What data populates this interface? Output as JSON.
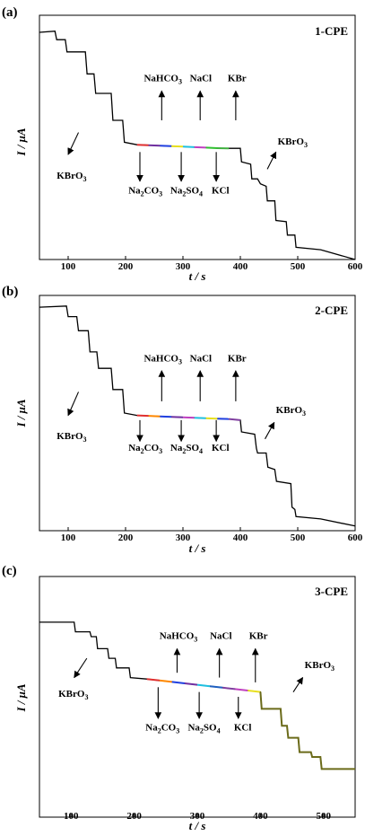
{
  "chart_data": [
    {
      "type": "line",
      "panel_label": "(a)",
      "title": "1-CPE",
      "xlabel": "t / s",
      "ylabel": "I / μA",
      "xlim": [
        50,
        600
      ],
      "xticks": [
        "100",
        "200",
        "300",
        "400",
        "500",
        "600"
      ],
      "x": [
        50,
        77,
        80,
        95,
        98,
        130,
        133,
        145,
        148,
        175,
        178,
        195,
        198,
        220,
        240,
        260,
        280,
        300,
        320,
        340,
        360,
        380,
        400,
        402,
        418,
        420,
        430,
        435,
        445,
        447,
        460,
        462,
        480,
        482,
        495,
        497,
        540,
        600
      ],
      "y": [
        0.93,
        0.935,
        0.9,
        0.9,
        0.85,
        0.85,
        0.76,
        0.76,
        0.68,
        0.68,
        0.57,
        0.57,
        0.48,
        0.47,
        0.468,
        0.466,
        0.464,
        0.462,
        0.46,
        0.458,
        0.456,
        0.455,
        0.455,
        0.4,
        0.39,
        0.33,
        0.33,
        0.31,
        0.3,
        0.24,
        0.24,
        0.16,
        0.155,
        0.1,
        0.1,
        0.05,
        0.04,
        0.0
      ],
      "colored_segments": [
        {
          "from": 220,
          "to": 240,
          "color": "#e03030"
        },
        {
          "from": 240,
          "to": 260,
          "color": "#7030a0"
        },
        {
          "from": 260,
          "to": 280,
          "color": "#2040e0"
        },
        {
          "from": 280,
          "to": 300,
          "color": "#e8e020"
        },
        {
          "from": 300,
          "to": 320,
          "color": "#20c0e0"
        },
        {
          "from": 320,
          "to": 340,
          "color": "#c040c0"
        },
        {
          "from": 340,
          "to": 360,
          "color": "#30c030"
        },
        {
          "from": 360,
          "to": 380,
          "color": "#40b040"
        }
      ],
      "annotations": [
        {
          "id": "kbro3-left",
          "segments": [
            {
              "text": "KBrO"
            },
            {
              "text": "3",
              "sub": true
            }
          ],
          "x": 80,
          "y": 0.33,
          "arrow": {
            "x0": 118,
            "y0": 0.52,
            "x1": 100,
            "y1": 0.43
          }
        },
        {
          "id": "na2co3",
          "segments": [
            {
              "text": "Na"
            },
            {
              "text": "2",
              "sub": true
            },
            {
              "text": "CO"
            },
            {
              "text": "3",
              "sub": true
            }
          ],
          "x": 205,
          "y": 0.27,
          "arrow": {
            "x0": 225,
            "y0": 0.44,
            "x1": 225,
            "y1": 0.32
          }
        },
        {
          "id": "na2so4",
          "segments": [
            {
              "text": "Na"
            },
            {
              "text": "2",
              "sub": true
            },
            {
              "text": "SO"
            },
            {
              "text": "4",
              "sub": true
            }
          ],
          "x": 278,
          "y": 0.27,
          "arrow": {
            "x0": 297,
            "y0": 0.44,
            "x1": 297,
            "y1": 0.32
          }
        },
        {
          "id": "kcl",
          "segments": [
            {
              "text": "KCl"
            }
          ],
          "x": 350,
          "y": 0.27,
          "arrow": {
            "x0": 358,
            "y0": 0.44,
            "x1": 358,
            "y1": 0.32
          }
        },
        {
          "id": "nahco3",
          "segments": [
            {
              "text": "NaHCO"
            },
            {
              "text": "3",
              "sub": true
            }
          ],
          "x": 232,
          "y": 0.73,
          "arrow": {
            "x0": 263,
            "y0": 0.57,
            "x1": 263,
            "y1": 0.69
          }
        },
        {
          "id": "nacl",
          "segments": [
            {
              "text": "NaCl"
            }
          ],
          "x": 312,
          "y": 0.73,
          "arrow": {
            "x0": 330,
            "y0": 0.57,
            "x1": 330,
            "y1": 0.69
          }
        },
        {
          "id": "kbr",
          "segments": [
            {
              "text": "KBr"
            }
          ],
          "x": 378,
          "y": 0.73,
          "arrow": {
            "x0": 392,
            "y0": 0.57,
            "x1": 392,
            "y1": 0.69
          }
        },
        {
          "id": "kbro3-right",
          "segments": [
            {
              "text": "KBrO"
            },
            {
              "text": "3",
              "sub": true
            }
          ],
          "x": 465,
          "y": 0.47,
          "arrow": {
            "x0": 447,
            "y0": 0.37,
            "x1": 462,
            "y1": 0.44
          }
        }
      ]
    },
    {
      "type": "line",
      "panel_label": "(b)",
      "title": "2-CPE",
      "xlabel": "t / s",
      "ylabel": "I / μA",
      "xlim": [
        50,
        600
      ],
      "xticks": [
        "100",
        "200",
        "300",
        "400",
        "500",
        "600"
      ],
      "x": [
        50,
        97,
        100,
        115,
        118,
        135,
        138,
        150,
        153,
        175,
        178,
        195,
        198,
        220,
        240,
        260,
        280,
        300,
        320,
        340,
        360,
        380,
        400,
        402,
        425,
        428,
        430,
        445,
        448,
        460,
        463,
        488,
        490,
        495,
        497,
        540,
        600
      ],
      "y": [
        0.95,
        0.955,
        0.91,
        0.91,
        0.85,
        0.85,
        0.76,
        0.76,
        0.69,
        0.69,
        0.6,
        0.6,
        0.5,
        0.49,
        0.488,
        0.486,
        0.484,
        0.482,
        0.48,
        0.478,
        0.476,
        0.475,
        0.47,
        0.42,
        0.41,
        0.35,
        0.33,
        0.33,
        0.27,
        0.26,
        0.21,
        0.2,
        0.1,
        0.09,
        0.06,
        0.05,
        0.02
      ],
      "colored_segments": [
        {
          "from": 220,
          "to": 240,
          "color": "#e03030"
        },
        {
          "from": 240,
          "to": 260,
          "color": "#ff8800"
        },
        {
          "from": 260,
          "to": 280,
          "color": "#2040e0"
        },
        {
          "from": 280,
          "to": 300,
          "color": "#7030a0"
        },
        {
          "from": 300,
          "to": 320,
          "color": "#c040c0"
        },
        {
          "from": 320,
          "to": 340,
          "color": "#20c0e0"
        },
        {
          "from": 340,
          "to": 360,
          "color": "#e8e020"
        },
        {
          "from": 360,
          "to": 380,
          "color": "#2040e0"
        },
        {
          "from": 380,
          "to": 400,
          "color": "#8040a0"
        }
      ],
      "annotations": [
        {
          "id": "kbro3-left",
          "segments": [
            {
              "text": "KBrO"
            },
            {
              "text": "3",
              "sub": true
            }
          ],
          "x": 80,
          "y": 0.39,
          "arrow": {
            "x0": 118,
            "y0": 0.59,
            "x1": 100,
            "y1": 0.49
          }
        },
        {
          "id": "na2co3",
          "segments": [
            {
              "text": "Na"
            },
            {
              "text": "2",
              "sub": true
            },
            {
              "text": "CO"
            },
            {
              "text": "3",
              "sub": true
            }
          ],
          "x": 205,
          "y": 0.34,
          "arrow": {
            "x0": 225,
            "y0": 0.47,
            "x1": 225,
            "y1": 0.38
          }
        },
        {
          "id": "na2so4",
          "segments": [
            {
              "text": "Na"
            },
            {
              "text": "2",
              "sub": true
            },
            {
              "text": "SO"
            },
            {
              "text": "4",
              "sub": true
            }
          ],
          "x": 278,
          "y": 0.34,
          "arrow": {
            "x0": 297,
            "y0": 0.47,
            "x1": 297,
            "y1": 0.38
          }
        },
        {
          "id": "kcl",
          "segments": [
            {
              "text": "KCl"
            }
          ],
          "x": 350,
          "y": 0.34,
          "arrow": {
            "x0": 358,
            "y0": 0.47,
            "x1": 358,
            "y1": 0.38
          }
        },
        {
          "id": "nahco3",
          "segments": [
            {
              "text": "NaHCO"
            },
            {
              "text": "3",
              "sub": true
            }
          ],
          "x": 232,
          "y": 0.72,
          "arrow": {
            "x0": 263,
            "y0": 0.55,
            "x1": 263,
            "y1": 0.68
          }
        },
        {
          "id": "nacl",
          "segments": [
            {
              "text": "NaCl"
            }
          ],
          "x": 312,
          "y": 0.72,
          "arrow": {
            "x0": 330,
            "y0": 0.55,
            "x1": 330,
            "y1": 0.68
          }
        },
        {
          "id": "kbr",
          "segments": [
            {
              "text": "KBr"
            }
          ],
          "x": 378,
          "y": 0.72,
          "arrow": {
            "x0": 392,
            "y0": 0.55,
            "x1": 392,
            "y1": 0.68
          }
        },
        {
          "id": "kbro3-right",
          "segments": [
            {
              "text": "KBrO"
            },
            {
              "text": "3",
              "sub": true
            }
          ],
          "x": 462,
          "y": 0.5,
          "arrow": {
            "x0": 443,
            "y0": 0.39,
            "x1": 459,
            "y1": 0.46
          }
        }
      ]
    },
    {
      "type": "line",
      "panel_label": "(c)",
      "title": "3-CPE",
      "xlabel": "t / s",
      "ylabel": "I / μA",
      "xlim": [
        50,
        550
      ],
      "xticks": [
        "100",
        "200",
        "300",
        "400",
        "500"
      ],
      "x": [
        50,
        105,
        107,
        130,
        132,
        140,
        142,
        158,
        160,
        170,
        172,
        192,
        194,
        220,
        240,
        260,
        280,
        300,
        320,
        340,
        360,
        380,
        400,
        402,
        432,
        434,
        442,
        444,
        460,
        462,
        480,
        482,
        495,
        497,
        520,
        550
      ],
      "y": [
        0.81,
        0.81,
        0.77,
        0.77,
        0.75,
        0.75,
        0.7,
        0.7,
        0.66,
        0.66,
        0.62,
        0.62,
        0.58,
        0.574,
        0.568,
        0.562,
        0.556,
        0.55,
        0.544,
        0.538,
        0.532,
        0.526,
        0.52,
        0.45,
        0.45,
        0.38,
        0.38,
        0.33,
        0.33,
        0.27,
        0.27,
        0.25,
        0.25,
        0.2,
        0.2,
        0.2
      ],
      "colored_segments": [
        {
          "from": 220,
          "to": 240,
          "color": "#e03030"
        },
        {
          "from": 240,
          "to": 260,
          "color": "#ff8800"
        },
        {
          "from": 260,
          "to": 280,
          "color": "#2040e0"
        },
        {
          "from": 280,
          "to": 300,
          "color": "#7030a0"
        },
        {
          "from": 300,
          "to": 320,
          "color": "#20c0e0"
        },
        {
          "from": 320,
          "to": 340,
          "color": "#2060c0"
        },
        {
          "from": 340,
          "to": 360,
          "color": "#8040a0"
        },
        {
          "from": 360,
          "to": 380,
          "color": "#c040c0"
        },
        {
          "from": 380,
          "to": 400,
          "color": "#e8e020"
        },
        {
          "from": 400,
          "to": 550,
          "color": "#6b6b1a"
        }
      ],
      "annotations": [
        {
          "id": "kbro3-left",
          "segments": [
            {
              "text": "KBrO"
            },
            {
              "text": "3",
              "sub": true
            }
          ],
          "x": 80,
          "y": 0.5,
          "arrow": {
            "x0": 125,
            "y0": 0.66,
            "x1": 105,
            "y1": 0.58
          }
        },
        {
          "id": "na2co3",
          "segments": [
            {
              "text": "Na"
            },
            {
              "text": "2",
              "sub": true
            },
            {
              "text": "CO"
            },
            {
              "text": "3",
              "sub": true
            }
          ],
          "x": 218,
          "y": 0.36,
          "arrow": {
            "x0": 238,
            "y0": 0.54,
            "x1": 238,
            "y1": 0.41
          }
        },
        {
          "id": "na2so4",
          "segments": [
            {
              "text": "Na"
            },
            {
              "text": "2",
              "sub": true
            },
            {
              "text": "SO"
            },
            {
              "text": "4",
              "sub": true
            }
          ],
          "x": 285,
          "y": 0.36,
          "arrow": {
            "x0": 303,
            "y0": 0.52,
            "x1": 303,
            "y1": 0.41
          }
        },
        {
          "id": "kcl",
          "segments": [
            {
              "text": "KCl"
            }
          ],
          "x": 358,
          "y": 0.36,
          "arrow": {
            "x0": 365,
            "y0": 0.5,
            "x1": 365,
            "y1": 0.41
          }
        },
        {
          "id": "nahco3",
          "segments": [
            {
              "text": "NaHCO"
            },
            {
              "text": "3",
              "sub": true
            }
          ],
          "x": 240,
          "y": 0.74,
          "arrow": {
            "x0": 268,
            "y0": 0.6,
            "x1": 268,
            "y1": 0.7
          }
        },
        {
          "id": "nacl",
          "segments": [
            {
              "text": "NaCl"
            }
          ],
          "x": 320,
          "y": 0.74,
          "arrow": {
            "x0": 335,
            "y0": 0.58,
            "x1": 335,
            "y1": 0.7
          }
        },
        {
          "id": "kbr",
          "segments": [
            {
              "text": "KBr"
            }
          ],
          "x": 382,
          "y": 0.74,
          "arrow": {
            "x0": 392,
            "y0": 0.56,
            "x1": 392,
            "y1": 0.7
          }
        },
        {
          "id": "kbro3-right",
          "segments": [
            {
              "text": "KBrO"
            },
            {
              "text": "3",
              "sub": true
            }
          ],
          "x": 470,
          "y": 0.62,
          "arrow": {
            "x0": 452,
            "y0": 0.52,
            "x1": 467,
            "y1": 0.58
          }
        }
      ]
    }
  ]
}
